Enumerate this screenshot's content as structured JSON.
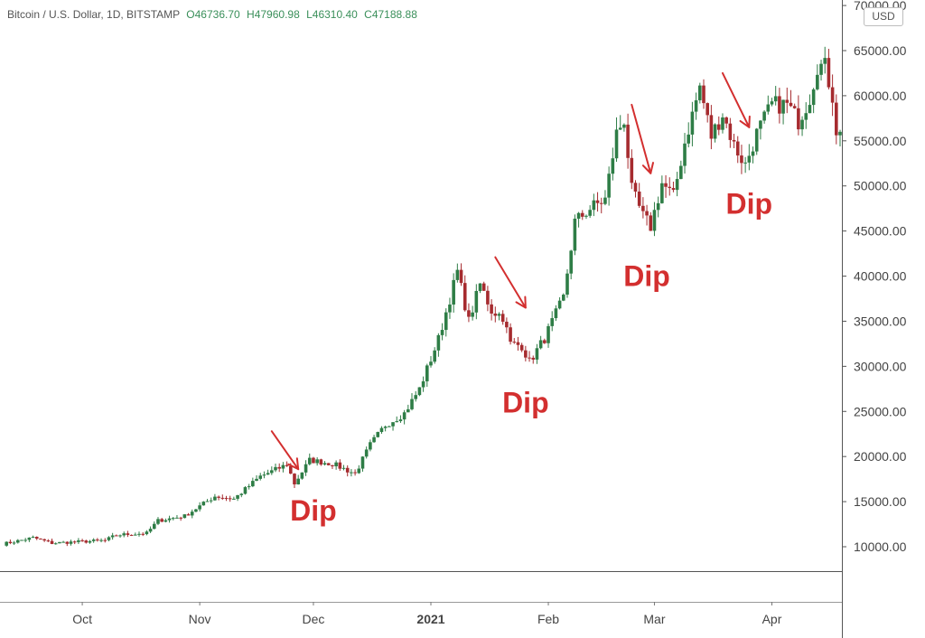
{
  "header": {
    "symbol": "Bitcoin / U.S. Dollar, 1D, BITSTAMP",
    "open": "O46736.70",
    "high": "H47960.98",
    "low": "L46310.40",
    "close": "C47188.88"
  },
  "currency_badge": "USD",
  "colors": {
    "up": "#2e7d46",
    "down": "#a62b2f",
    "annotation": "#d32f2f",
    "axis": "#777777",
    "text": "#444444"
  },
  "chart_data": {
    "type": "candlestick",
    "title": "Bitcoin / U.S. Dollar, 1D, BITSTAMP",
    "ylim": [
      7000,
      70000
    ],
    "yticks": [
      10000,
      15000,
      20000,
      25000,
      30000,
      35000,
      40000,
      45000,
      50000,
      55000,
      60000,
      65000,
      70000
    ],
    "ytick_labels": [
      "10000.00",
      "15000.00",
      "20000.00",
      "25000.00",
      "30000.00",
      "35000.00",
      "40000.00",
      "45000.00",
      "50000.00",
      "55000.00",
      "60000.00",
      "65000.00",
      "70000.00"
    ],
    "x_range": [
      "2020-09-10",
      "2021-04-19"
    ],
    "xticks": [
      {
        "date": "2020-10-01",
        "label": "Oct",
        "bold": false
      },
      {
        "date": "2020-11-01",
        "label": "Nov",
        "bold": false
      },
      {
        "date": "2020-12-01",
        "label": "Dec",
        "bold": false
      },
      {
        "date": "2021-01-01",
        "label": "2021",
        "bold": true
      },
      {
        "date": "2021-02-01",
        "label": "Feb",
        "bold": false
      },
      {
        "date": "2021-03-01",
        "label": "Mar",
        "bold": false
      },
      {
        "date": "2021-04-01",
        "label": "Apr",
        "bold": false
      }
    ],
    "price_anchors": [
      [
        "2020-09-10",
        10300
      ],
      [
        "2020-09-18",
        11000
      ],
      [
        "2020-09-23",
        10400
      ],
      [
        "2020-10-07",
        10700
      ],
      [
        "2020-10-10",
        11300
      ],
      [
        "2020-10-18",
        11500
      ],
      [
        "2020-10-21",
        12900
      ],
      [
        "2020-10-28",
        13400
      ],
      [
        "2020-11-05",
        15600
      ],
      [
        "2020-11-10",
        15300
      ],
      [
        "2020-11-17",
        17800
      ],
      [
        "2020-11-24",
        19100
      ],
      [
        "2020-11-26",
        17000
      ],
      [
        "2020-11-30",
        19600
      ],
      [
        "2020-12-06",
        19200
      ],
      [
        "2020-12-12",
        18100
      ],
      [
        "2020-12-16",
        21300
      ],
      [
        "2020-12-20",
        23500
      ],
      [
        "2020-12-25",
        24800
      ],
      [
        "2020-12-29",
        27500
      ],
      [
        "2021-01-03",
        33000
      ],
      [
        "2021-01-08",
        40500
      ],
      [
        "2021-01-11",
        35000
      ],
      [
        "2021-01-14",
        39100
      ],
      [
        "2021-01-17",
        36200
      ],
      [
        "2021-01-20",
        35500
      ],
      [
        "2021-01-22",
        32500
      ],
      [
        "2021-01-25",
        32300
      ],
      [
        "2021-01-27",
        30500
      ],
      [
        "2021-01-31",
        33100
      ],
      [
        "2021-02-05",
        37600
      ],
      [
        "2021-02-08",
        46000
      ],
      [
        "2021-02-12",
        47500
      ],
      [
        "2021-02-16",
        48500
      ],
      [
        "2021-02-19",
        55800
      ],
      [
        "2021-02-21",
        57400
      ],
      [
        "2021-02-23",
        49500
      ],
      [
        "2021-02-26",
        46600
      ],
      [
        "2021-02-28",
        45500
      ],
      [
        "2021-03-03",
        50300
      ],
      [
        "2021-03-06",
        48800
      ],
      [
        "2021-03-09",
        54800
      ],
      [
        "2021-03-13",
        61000
      ],
      [
        "2021-03-16",
        55500
      ],
      [
        "2021-03-19",
        58000
      ],
      [
        "2021-03-22",
        54500
      ],
      [
        "2021-03-25",
        52300
      ],
      [
        "2021-03-28",
        55800
      ],
      [
        "2021-04-01",
        59000
      ],
      [
        "2021-04-05",
        59000
      ],
      [
        "2021-04-08",
        57200
      ],
      [
        "2021-04-11",
        59800
      ],
      [
        "2021-04-13",
        63400
      ],
      [
        "2021-04-15",
        63200
      ],
      [
        "2021-04-17",
        60000
      ],
      [
        "2021-04-18",
        56200
      ],
      [
        "2021-04-19",
        56000
      ]
    ],
    "annotations": [
      {
        "label": "Dip",
        "text_date": "2020-12-01",
        "text_price": 14000,
        "arrow_from": [
          "2020-11-20",
          22800
        ],
        "arrow_to": [
          "2020-11-27",
          18600
        ]
      },
      {
        "label": "Dip",
        "text_date": "2021-01-26",
        "text_price": 26000,
        "arrow_from": [
          "2021-01-18",
          42100
        ],
        "arrow_to": [
          "2021-01-26",
          36500
        ]
      },
      {
        "label": "Dip",
        "text_date": "2021-02-27",
        "text_price": 40000,
        "arrow_from": [
          "2021-02-23",
          59000
        ],
        "arrow_to": [
          "2021-02-28",
          51400
        ]
      },
      {
        "label": "Dip",
        "text_date": "2021-03-26",
        "text_price": 48000,
        "arrow_from": [
          "2021-03-19",
          62500
        ],
        "arrow_to": [
          "2021-03-26",
          56500
        ]
      }
    ]
  }
}
